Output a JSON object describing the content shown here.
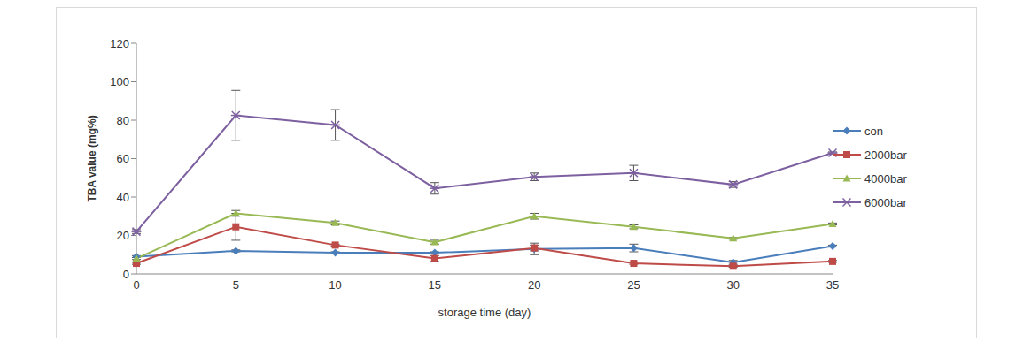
{
  "chart_data": {
    "type": "line",
    "x_label": "storage time (day)",
    "y_label": "TBA value (mg%)",
    "categories": [
      "0",
      "5",
      "10",
      "15",
      "20",
      "25",
      "30",
      "35"
    ],
    "ylim": [
      0,
      120
    ],
    "yticks": [
      0,
      20,
      40,
      60,
      80,
      100,
      120
    ],
    "grid": false,
    "legend": "right",
    "series": [
      {
        "name": "con",
        "color": "#4a7ebb",
        "marker": "diamond",
        "values": [
          9,
          12,
          11,
          11,
          13,
          13.5,
          6,
          14.5
        ],
        "errors": [
          0.5,
          0.5,
          0.5,
          0.5,
          3,
          2,
          1,
          0.5
        ]
      },
      {
        "name": "2000bar",
        "color": "#be4b48",
        "marker": "square",
        "values": [
          5.5,
          24.5,
          15,
          8,
          13.5,
          5.5,
          4,
          6.5
        ],
        "errors": [
          0.5,
          7,
          0.5,
          1.5,
          1.5,
          0.5,
          0.5,
          0.5
        ]
      },
      {
        "name": "4000bar",
        "color": "#98b954",
        "marker": "triangle",
        "values": [
          8,
          31.5,
          26.5,
          16.5,
          30,
          24.5,
          18.5,
          26
        ],
        "errors": [
          0.5,
          1.5,
          1,
          1,
          1.5,
          1,
          0.5,
          0.5
        ]
      },
      {
        "name": "6000bar",
        "color": "#7d60a0",
        "marker": "x",
        "values": [
          22,
          82.5,
          77.5,
          44.5,
          50.5,
          52.5,
          46.5,
          63
        ],
        "errors": [
          1,
          13,
          8,
          3,
          2,
          4,
          1.5,
          0.5
        ]
      }
    ]
  }
}
